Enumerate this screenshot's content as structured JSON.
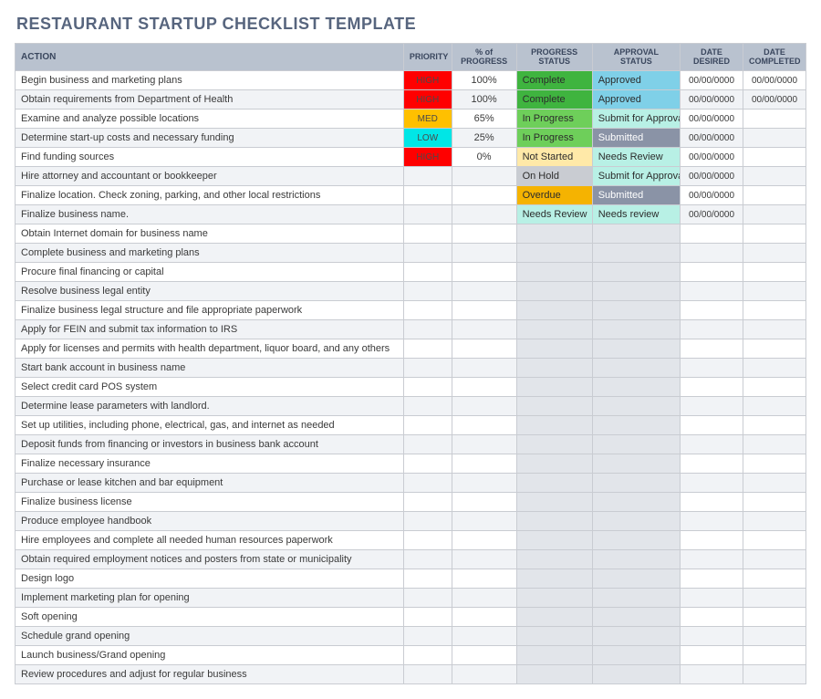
{
  "title": "RESTAURANT STARTUP CHECKLIST TEMPLATE",
  "columns": {
    "action": "ACTION",
    "priority": "PRIORITY",
    "progress": "% of PROGRESS",
    "pstatus": "PROGRESS STATUS",
    "astatus": "APPROVAL STATUS",
    "date_desired": "DATE DESIRED",
    "date_completed": "DATE COMPLETED"
  },
  "priority_styles": {
    "HIGH": {
      "bg": "#ff0000",
      "fg": "#4a4a4a"
    },
    "MED": {
      "bg": "#ffc000",
      "fg": "#4a4a4a"
    },
    "LOW": {
      "bg": "#00e6e6",
      "fg": "#4a4a4a"
    }
  },
  "progress_status_styles": {
    "Complete": {
      "bg": "#3fb43f",
      "fg": "#2c2c2c"
    },
    "In Progress": {
      "bg": "#6ecf5a",
      "fg": "#2c2c2c"
    },
    "Not Started": {
      "bg": "#ffe9a8",
      "fg": "#2c2c2c"
    },
    "On Hold": {
      "bg": "#c9ccd2",
      "fg": "#2c2c2c"
    },
    "Overdue": {
      "bg": "#f5b301",
      "fg": "#2c2c2c"
    },
    "Needs Review": {
      "bg": "#b8f0e5",
      "fg": "#2c2c2c"
    }
  },
  "approval_status_styles": {
    "Approved": {
      "bg": "#7fd0e8",
      "fg": "#2c2c2c"
    },
    "Submit for Approval": {
      "bg": "#b8f0e5",
      "fg": "#2c2c2c"
    },
    "Submitted": {
      "bg": "#8a93a6",
      "fg": "#ffffff"
    },
    "Needs Review": {
      "bg": "#b8f0e5",
      "fg": "#2c2c2c"
    },
    "Needs review": {
      "bg": "#b8f0e5",
      "fg": "#2c2c2c"
    }
  },
  "blank_status_bg": "#e2e5ea",
  "rows": [
    {
      "action": "Begin business and marketing plans",
      "priority": "HIGH",
      "progress": "100%",
      "pstatus": "Complete",
      "astatus": "Approved",
      "date_desired": "00/00/0000",
      "date_completed": "00/00/0000"
    },
    {
      "action": "Obtain requirements from Department of Health",
      "priority": "HIGH",
      "progress": "100%",
      "pstatus": "Complete",
      "astatus": "Approved",
      "date_desired": "00/00/0000",
      "date_completed": "00/00/0000"
    },
    {
      "action": "Examine and analyze possible locations",
      "priority": "MED",
      "progress": "65%",
      "pstatus": "In Progress",
      "astatus": "Submit for Approval",
      "date_desired": "00/00/0000",
      "date_completed": ""
    },
    {
      "action": "Determine start-up costs and necessary funding",
      "priority": "LOW",
      "progress": "25%",
      "pstatus": "In Progress",
      "astatus": "Submitted",
      "date_desired": "00/00/0000",
      "date_completed": ""
    },
    {
      "action": "Find funding sources",
      "priority": "HIGH",
      "progress": "0%",
      "pstatus": "Not Started",
      "astatus": "Needs Review",
      "date_desired": "00/00/0000",
      "date_completed": ""
    },
    {
      "action": "Hire attorney and accountant or bookkeeper",
      "priority": "",
      "progress": "",
      "pstatus": "On Hold",
      "astatus": "Submit for Approval",
      "date_desired": "00/00/0000",
      "date_completed": ""
    },
    {
      "action": "Finalize location. Check zoning, parking, and other local restrictions",
      "priority": "",
      "progress": "",
      "pstatus": "Overdue",
      "astatus": "Submitted",
      "date_desired": "00/00/0000",
      "date_completed": ""
    },
    {
      "action": "Finalize business name.",
      "priority": "",
      "progress": "",
      "pstatus": "Needs Review",
      "astatus": "Needs review",
      "date_desired": "00/00/0000",
      "date_completed": ""
    },
    {
      "action": "Obtain Internet domain for business name"
    },
    {
      "action": "Complete business and marketing plans"
    },
    {
      "action": "Procure final financing or capital"
    },
    {
      "action": "Resolve business legal entity"
    },
    {
      "action": "Finalize business legal structure and file appropriate paperwork"
    },
    {
      "action": "Apply for FEIN and submit tax information to IRS"
    },
    {
      "action": "Apply for licenses and permits with health department, liquor board, and any others"
    },
    {
      "action": "Start bank account in business name"
    },
    {
      "action": "Select credit card POS system"
    },
    {
      "action": "Determine lease parameters with landlord."
    },
    {
      "action": "Set up utilities, including phone, electrical, gas, and internet as needed"
    },
    {
      "action": "Deposit funds from financing or investors in business bank account"
    },
    {
      "action": "Finalize necessary insurance"
    },
    {
      "action": "Purchase or lease kitchen and bar equipment"
    },
    {
      "action": "Finalize business license"
    },
    {
      "action": "Produce employee handbook"
    },
    {
      "action": "Hire employees and complete all needed human resources paperwork"
    },
    {
      "action": "Obtain required employment notices and posters from state or municipality"
    },
    {
      "action": "Design logo"
    },
    {
      "action": "Implement marketing plan for opening"
    },
    {
      "action": "Soft opening"
    },
    {
      "action": "Schedule grand opening"
    },
    {
      "action": "Launch business/Grand opening"
    },
    {
      "action": "Review procedures and adjust for regular business"
    }
  ]
}
